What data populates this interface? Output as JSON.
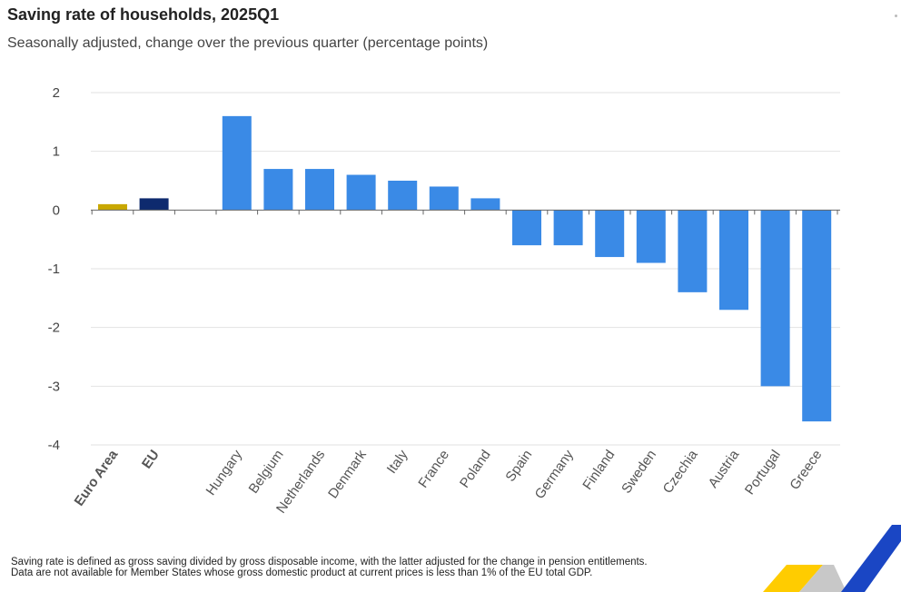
{
  "header": {
    "title": "Saving rate of households, 2025Q1",
    "subtitle": "Seasonally adjusted, change over the previous quarter (percentage points)"
  },
  "chart_data": {
    "type": "bar",
    "title": "Saving rate of households, 2025Q1",
    "subtitle": "Seasonally adjusted, change over the previous quarter (percentage points)",
    "xlabel": "",
    "ylabel": "",
    "ylim": [
      -4,
      2
    ],
    "yticks": [
      2,
      1,
      0,
      -1,
      -2,
      -3,
      -4
    ],
    "grid": true,
    "categories": [
      "Euro Area",
      "EU",
      "",
      "Hungary",
      "Belgium",
      "Netherlands",
      "Denmark",
      "Italy",
      "France",
      "Poland",
      "Spain",
      "Germany",
      "Finland",
      "Sweden",
      "Czechia",
      "Austria",
      "Portugal",
      "Greece"
    ],
    "values": [
      0.1,
      0.2,
      null,
      1.6,
      0.7,
      0.7,
      0.6,
      0.5,
      0.4,
      0.2,
      -0.6,
      -0.6,
      -0.8,
      -0.9,
      -1.4,
      -1.7,
      -3.0,
      -3.6
    ],
    "bold_categories": [
      "Euro Area",
      "EU"
    ],
    "colors": {
      "Euro Area": "#c9a800",
      "EU": "#0e2a6e",
      "default": "#3a8ae6"
    }
  },
  "footnotes": [
    "Saving rate is defined as gross saving divided by gross disposable income, with the latter adjusted for the change in pension entitlements.",
    "Data are not available for Member States whose gross domestic product at current prices is less than 1% of the EU total GDP."
  ]
}
